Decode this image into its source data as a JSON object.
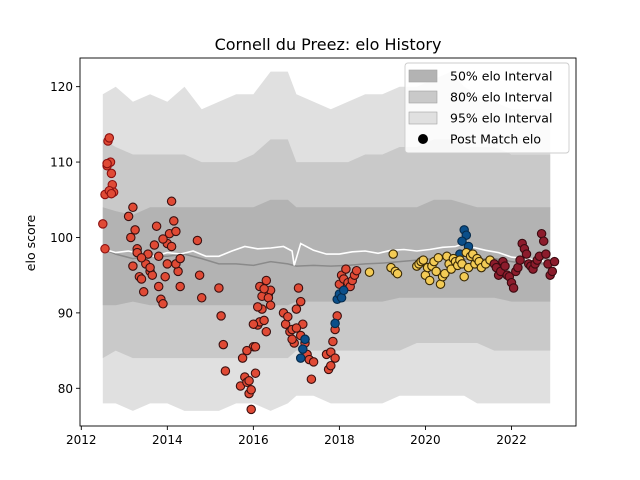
{
  "chart_data": {
    "type": "scatter",
    "title": "Cornell du Preez: elo History",
    "xlabel": "",
    "ylabel": "elo score",
    "xlim": [
      2011.97,
      2023.5
    ],
    "ylim": [
      75,
      123.8
    ],
    "x_ticks": [
      2012,
      2014,
      2016,
      2018,
      2020,
      2022
    ],
    "y_ticks": [
      80,
      90,
      100,
      110,
      120
    ],
    "legend": {
      "position": "top-right",
      "entries": [
        {
          "label": "50% elo Interval",
          "color": "#b3b3b3"
        },
        {
          "label": "80% elo Interval",
          "color": "#c9c9c9"
        },
        {
          "label": "95% elo Interval",
          "color": "#e0e0e0"
        },
        {
          "label": "Post Match elo",
          "color": "#000000"
        }
      ]
    },
    "bands": {
      "x": [
        2012.5,
        2012.8,
        2013.2,
        2013.6,
        2014.0,
        2014.4,
        2014.8,
        2015.2,
        2015.6,
        2016.0,
        2016.4,
        2016.8,
        2017.0,
        2017.4,
        2017.8,
        2018.2,
        2018.6,
        2019.0,
        2019.4,
        2019.8,
        2020.2,
        2020.6,
        2020.9,
        2021.2,
        2021.6,
        2022.0,
        2022.4,
        2022.9
      ],
      "p95_upper": [
        119,
        120,
        118,
        119,
        118,
        120,
        117,
        118,
        119,
        119,
        122,
        122,
        119,
        118,
        117,
        118,
        119,
        119,
        120,
        120,
        121,
        122,
        120,
        119,
        118,
        117,
        117,
        117
      ],
      "p95_lower": [
        78,
        78,
        77,
        78,
        78,
        77,
        77,
        77,
        78,
        78,
        77,
        78,
        79,
        79,
        78,
        78,
        78,
        78,
        79,
        79,
        79,
        79,
        79,
        78,
        78,
        78,
        78,
        78
      ],
      "p80_upper": [
        113,
        112,
        111,
        111,
        111,
        111,
        110,
        110,
        110,
        111,
        113,
        113,
        110,
        110,
        110,
        110,
        111,
        111,
        112,
        112,
        113,
        113,
        112,
        112,
        112,
        111,
        111,
        111
      ],
      "p80_lower": [
        84,
        85,
        84,
        84,
        84,
        84,
        84,
        84,
        84,
        84,
        84,
        84,
        85,
        85,
        85,
        85,
        85,
        85,
        85,
        86,
        86,
        86,
        86,
        86,
        85,
        85,
        85,
        85
      ],
      "p50_upper": [
        104,
        103.5,
        103,
        104,
        104,
        104,
        104,
        104,
        104,
        104,
        105,
        105,
        104,
        104,
        104,
        104,
        104,
        104,
        104,
        104,
        105,
        105,
        104.5,
        104,
        104,
        104,
        104,
        104
      ],
      "p50_lower": [
        91,
        91,
        91.5,
        91,
        91,
        91,
        91,
        91,
        91,
        91,
        91,
        91,
        91.5,
        91.5,
        91.5,
        91.5,
        91.5,
        91.5,
        92,
        92,
        92,
        92,
        92,
        92,
        92,
        91.5,
        91.5,
        91.5
      ],
      "median": [
        98.5,
        97.8,
        97.2,
        97.5,
        97.5,
        97.8,
        97.2,
        96.5,
        96.5,
        96.3,
        96.8,
        96.5,
        96.2,
        96.3,
        96.2,
        96.3,
        96.5,
        96.6,
        96.8,
        97,
        97.2,
        97.2,
        97.1,
        97.1,
        97.2,
        96.8,
        96.5,
        96.5
      ]
    },
    "rating_line": {
      "x": [
        2012.5,
        2012.8,
        2013.1,
        2013.4,
        2013.7,
        2014.0,
        2014.3,
        2014.6,
        2014.9,
        2015.2,
        2015.5,
        2015.8,
        2016.1,
        2016.4,
        2016.7,
        2016.9,
        2016.95,
        2017.1,
        2017.4,
        2017.7,
        2018.0,
        2018.3,
        2018.6,
        2018.9,
        2019.2,
        2019.5,
        2019.8,
        2020.1,
        2020.4,
        2020.7,
        2020.9,
        2021.1,
        2021.4,
        2021.7,
        2022.0,
        2022.3,
        2022.6,
        2022.9
      ],
      "y": [
        98.5,
        98.0,
        98.2,
        97.8,
        97.5,
        98.0,
        97.8,
        98.2,
        97.5,
        97.5,
        98.2,
        98.8,
        98.5,
        98.6,
        98.8,
        98.2,
        96.3,
        99.2,
        98.3,
        97.8,
        97.8,
        98.1,
        98.2,
        97.9,
        98.3,
        98.4,
        98.2,
        98.4,
        98.7,
        98.8,
        99.2,
        98.7,
        98.3,
        98.0,
        97.4,
        97.2,
        97.0,
        96.7
      ]
    },
    "series": [
      {
        "color": "#e04a35",
        "edge": "#8b1010",
        "x": [
          2012.5,
          2012.55,
          2012.6,
          2012.62,
          2012.65,
          2012.68,
          2012.7,
          2012.72,
          2012.75,
          2012.55,
          2012.6,
          2012.65,
          2012.7
        ],
        "y": [
          101.8,
          105.7,
          109.5,
          112.8,
          113.2,
          110.0,
          108.5,
          107.0,
          106.0,
          98.5,
          109.8,
          106.2,
          105.8
        ]
      },
      {
        "color": "#e04a35",
        "edge": "#3a1010",
        "x": [
          2013.1,
          2013.15,
          2013.2,
          2013.25,
          2013.3,
          2013.35,
          2013.4,
          2013.45,
          2013.5,
          2013.55,
          2013.6,
          2013.65,
          2013.7,
          2013.75,
          2013.8,
          2013.85,
          2013.9,
          2013.95,
          2014.0,
          2014.05,
          2014.1,
          2014.15,
          2014.2,
          2014.25,
          2014.3,
          2014.7,
          2014.75,
          2014.8,
          2013.2,
          2013.3,
          2013.4,
          2013.6,
          2013.8,
          2013.9,
          2014.0,
          2014.1,
          2014.2,
          2014.3
        ],
        "y": [
          102.8,
          100.0,
          104.0,
          101.0,
          98.5,
          94.8,
          94.5,
          92.8,
          96.5,
          97.8,
          95.5,
          95.0,
          99.0,
          101.5,
          93.5,
          91.8,
          91.2,
          94.8,
          99.2,
          100.5,
          98.8,
          102.2,
          100.8,
          95.5,
          93.5,
          99.6,
          95.0,
          92.0,
          96.2,
          98.0,
          97.3,
          96.0,
          97.5,
          99.8,
          96.5,
          104.8,
          96.5,
          97.2
        ]
      },
      {
        "color": "#e04a35",
        "edge": "#3a1010",
        "x": [
          2015.2,
          2015.25,
          2015.3,
          2015.35,
          2015.7,
          2015.75,
          2015.8,
          2015.85,
          2015.9,
          2015.95,
          2016.0,
          2016.05,
          2016.1,
          2016.15,
          2016.2,
          2016.25,
          2016.3,
          2016.35,
          2016.4,
          2015.85,
          2015.9,
          2015.95,
          2016.0,
          2016.05,
          2016.1,
          2016.15,
          2016.2,
          2016.25,
          2016.3,
          2016.35,
          2016.4
        ],
        "y": [
          93.3,
          89.6,
          85.8,
          82.3,
          80.3,
          84.0,
          81.5,
          80.8,
          79.3,
          77.2,
          85.5,
          82.0,
          88.4,
          88.8,
          90.5,
          89.0,
          87.5,
          92.5,
          93.0,
          85.0,
          81.0,
          79.8,
          88.5,
          85.5,
          90.8,
          93.5,
          92.2,
          93.2,
          94.3,
          92.0,
          91.0
        ]
      },
      {
        "color": "#e04a35",
        "edge": "#3a1010",
        "x": [
          2016.7,
          2016.75,
          2016.8,
          2016.85,
          2016.9,
          2016.95,
          2017.0,
          2017.05,
          2017.1,
          2017.15,
          2017.2,
          2017.25,
          2017.3,
          2017.35,
          2017.4,
          2017.7,
          2017.75,
          2017.8,
          2017.85,
          2017.9,
          2017.95,
          2018.0,
          2018.05,
          2018.1,
          2018.15,
          2018.2,
          2018.25,
          2018.3,
          2018.35,
          2018.4,
          2016.9,
          2017.0,
          2017.1,
          2017.2,
          2017.8,
          2017.9
        ],
        "y": [
          90.0,
          88.5,
          89.5,
          87.5,
          87.8,
          86.0,
          90.5,
          93.3,
          91.5,
          88.5,
          86.0,
          84.5,
          83.8,
          81.2,
          83.5,
          84.5,
          82.5,
          84.8,
          86.2,
          87.8,
          89.6,
          93.8,
          95.0,
          94.5,
          95.8,
          94.0,
          93.5,
          94.3,
          95.0,
          95.6,
          86.5,
          88.0,
          87.0,
          86.5,
          83.0,
          84.0
        ]
      },
      {
        "color": "#0b4f8a",
        "edge": "#062a4a",
        "x": [
          2017.1,
          2017.15,
          2017.2,
          2017.9,
          2017.95,
          2018.0,
          2018.05,
          2018.1,
          2020.9,
          2020.95,
          2021.0,
          2020.8,
          2020.85
        ],
        "y": [
          84.0,
          85.2,
          86.5,
          88.6,
          91.8,
          92.5,
          92.0,
          93.0,
          101.0,
          100.3,
          98.8,
          97.8,
          99.5
        ]
      },
      {
        "color": "#f3cb55",
        "edge": "#3a2a05",
        "x": [
          2019.2,
          2019.25,
          2019.3,
          2019.35,
          2019.8,
          2019.85,
          2019.9,
          2019.95,
          2020.0,
          2020.05,
          2020.1,
          2020.15,
          2020.2,
          2020.25,
          2020.3,
          2020.35,
          2020.4,
          2020.45,
          2020.5,
          2020.55,
          2020.6,
          2020.65,
          2020.7,
          2020.75,
          2020.8,
          2020.85,
          2020.9,
          2020.95,
          2021.0,
          2021.05,
          2021.1,
          2021.15,
          2021.2,
          2021.25,
          2021.3,
          2021.4,
          2021.5,
          2018.7
        ],
        "y": [
          96.0,
          97.8,
          95.5,
          95.2,
          96.2,
          96.5,
          96.8,
          97.0,
          95.0,
          96.0,
          94.3,
          96.2,
          96.8,
          95.5,
          97.3,
          93.8,
          94.8,
          95.2,
          97.5,
          96.5,
          95.8,
          97.2,
          96.8,
          96.3,
          97.0,
          96.5,
          94.8,
          98.0,
          96.0,
          97.5,
          97.8,
          96.5,
          97.2,
          96.8,
          96.0,
          96.5,
          97.0,
          95.4
        ]
      },
      {
        "color": "#8c1c2c",
        "edge": "#3a0a10",
        "x": [
          2021.6,
          2021.65,
          2021.7,
          2021.75,
          2021.8,
          2021.85,
          2021.9,
          2021.95,
          2022.0,
          2022.05,
          2022.1,
          2022.15,
          2022.2,
          2022.25,
          2022.3,
          2022.35,
          2022.4,
          2022.45,
          2022.5,
          2022.55,
          2022.6,
          2022.65,
          2022.7,
          2022.75,
          2022.8,
          2022.85,
          2022.9,
          2022.95,
          2023.0
        ],
        "y": [
          96.5,
          96.0,
          95.0,
          95.5,
          96.8,
          96.2,
          95.0,
          94.8,
          94.0,
          93.3,
          95.5,
          96.0,
          97.0,
          99.2,
          98.5,
          97.8,
          96.5,
          96.2,
          95.8,
          96.5,
          97.0,
          97.5,
          100.5,
          99.5,
          97.8,
          96.5,
          95.0,
          95.5,
          96.8
        ]
      }
    ]
  }
}
